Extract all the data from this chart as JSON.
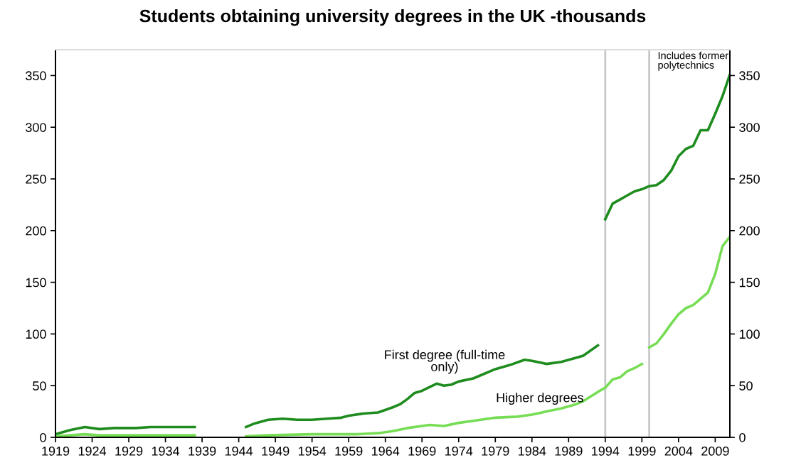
{
  "chart_data": {
    "type": "line",
    "title": "Students obtaining university degrees in the UK -thousands",
    "series": [
      {
        "name": "First degree (full-time\nonly)",
        "color": "#1e8c1e",
        "x": [
          1919,
          1921,
          1923,
          1925,
          1927,
          1930,
          1932,
          1934,
          1936,
          1938,
          1939,
          1944,
          1945,
          1946,
          1948,
          1950,
          1952,
          1954,
          1956,
          1958,
          1959,
          1961,
          1963,
          1965,
          1966,
          1967,
          1968,
          1969,
          1971,
          1972,
          1973,
          1974,
          1976,
          1979,
          1981,
          1983,
          1984,
          1986,
          1988,
          1990,
          1991,
          1993
        ],
        "values": [
          3,
          7,
          10,
          8,
          9,
          9,
          10,
          10,
          10,
          10,
          null,
          null,
          10,
          13,
          17,
          18,
          17,
          17,
          18,
          19,
          21,
          23,
          24,
          29,
          32,
          37,
          43,
          45,
          52,
          50,
          51,
          54,
          57,
          66,
          70,
          75,
          74,
          71,
          73,
          77,
          79,
          89
        ]
      },
      {
        "color": "#1e8c1e",
        "x": [
          1994,
          1995,
          1996,
          1997,
          1998,
          1999,
          2000,
          2001,
          2002,
          2003,
          2004,
          2005,
          2006,
          2007,
          2008,
          2009,
          2010,
          2011
        ],
        "values": [
          211,
          226,
          230,
          234,
          238,
          240,
          243,
          244,
          249,
          258,
          272,
          279,
          282,
          297,
          297,
          313,
          330,
          351
        ]
      },
      {
        "name": "Higher degrees",
        "color": "#77dd55",
        "x": [
          1919,
          1921,
          1923,
          1925,
          1930,
          1935,
          1938,
          1939,
          1944,
          1945,
          1948,
          1954,
          1960,
          1963,
          1965,
          1967,
          1969,
          1970,
          1972,
          1974,
          1976,
          1979,
          1982,
          1984,
          1986,
          1988,
          1990,
          1991,
          1993,
          1994,
          1995,
          1996,
          1997,
          1998,
          1999
        ],
        "values": [
          1,
          2,
          3,
          2,
          2,
          2,
          2,
          null,
          null,
          1,
          2,
          3,
          3,
          4,
          6,
          9,
          11,
          12,
          11,
          14,
          16,
          19,
          20,
          22,
          25,
          28,
          32,
          35,
          44,
          48,
          56,
          58,
          64,
          67,
          71
        ]
      },
      {
        "color": "#77dd55",
        "x": [
          2000,
          2001,
          2002,
          2003,
          2004,
          2005,
          2006,
          2007,
          2008,
          2009,
          2010,
          2011
        ],
        "values": [
          87,
          91,
          100,
          110,
          119,
          125,
          128,
          134,
          140,
          158,
          185,
          194
        ]
      }
    ],
    "xlim": [
      1919,
      2011
    ],
    "xticks": [
      1919,
      1924,
      1929,
      1934,
      1939,
      1944,
      1949,
      1954,
      1959,
      1964,
      1969,
      1974,
      1979,
      1984,
      1989,
      1994,
      1999,
      2004,
      2009
    ],
    "ylim": [
      0,
      375
    ],
    "yticks": [
      0,
      50,
      100,
      150,
      200,
      250,
      300,
      350
    ],
    "y2lim": [
      0,
      375
    ],
    "y2ticks": [
      0,
      50,
      100,
      150,
      200,
      250,
      300,
      350
    ],
    "ref_lines": [
      {
        "axis": "x",
        "value": 1994,
        "color": "#c8c8c8"
      },
      {
        "axis": "x",
        "value": 2000,
        "color": "#c8c8c8"
      }
    ],
    "annotations": [
      "Includes former\npolytechnics"
    ],
    "grid": false,
    "legend": false,
    "marker": "none",
    "line_style": "solid"
  }
}
